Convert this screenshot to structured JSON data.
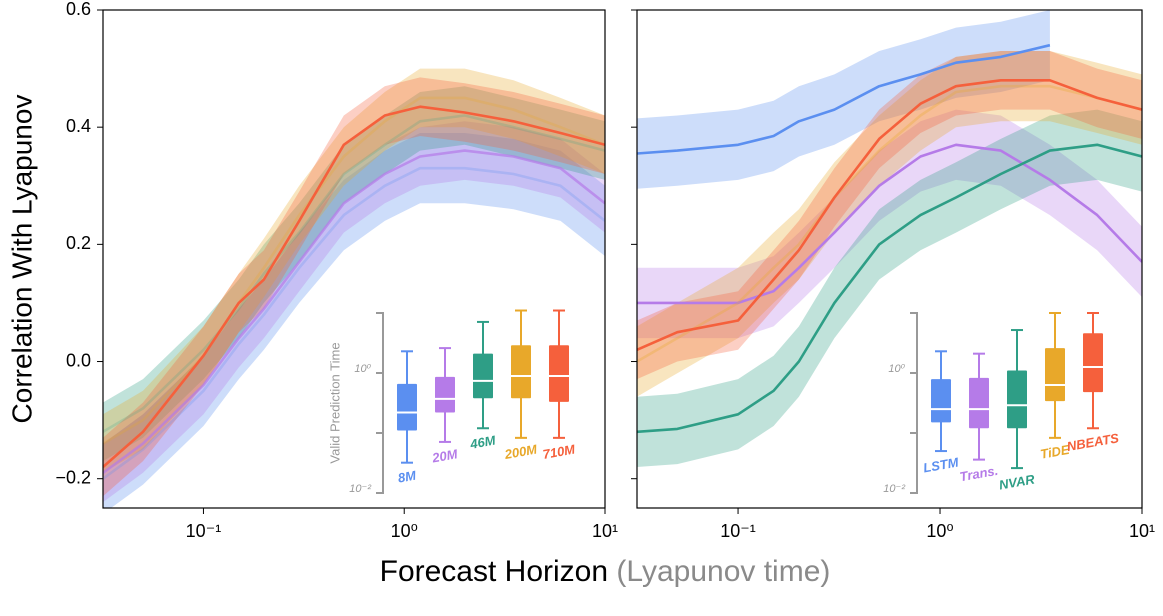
{
  "chart_data": [
    {
      "type": "line",
      "ylabel": "Correlation With Lyapunov",
      "xlabel": "Forecast Horizon",
      "xlabel_unit": "(Lyapunov time)",
      "xlog": true,
      "xlim": [
        0.0316,
        10
      ],
      "xticks": [
        {
          "value": 0.1,
          "label": "10⁻¹"
        },
        {
          "value": 1,
          "label": "10⁰"
        },
        {
          "value": 10,
          "label": "10¹"
        }
      ],
      "ylim": [
        -0.25,
        0.6
      ],
      "yticks": [
        {
          "value": -0.2,
          "label": "−0.2"
        },
        {
          "value": 0,
          "label": "0.0"
        },
        0.2,
        0.4,
        0.6
      ],
      "ytick_labels": true,
      "x": [
        0.0316,
        0.05,
        0.1,
        0.15,
        0.2,
        0.3,
        0.5,
        0.8,
        1.2,
        2,
        3.5,
        6,
        10
      ],
      "series": [
        {
          "name": "8M",
          "color": "#5b8ff0",
          "alpha": 0.25,
          "band_halfwidth": 0.06,
          "values": [
            -0.2,
            -0.15,
            -0.05,
            0.03,
            0.08,
            0.16,
            0.25,
            0.3,
            0.33,
            0.33,
            0.32,
            0.3,
            0.24
          ]
        },
        {
          "name": "20M",
          "color": "#b57be8",
          "alpha": 0.7,
          "band_halfwidth": 0.05,
          "values": [
            -0.19,
            -0.14,
            -0.04,
            0.04,
            0.09,
            0.17,
            0.27,
            0.32,
            0.35,
            0.36,
            0.35,
            0.33,
            0.27
          ]
        },
        {
          "name": "46M",
          "color": "#2e9e86",
          "alpha": 0.2,
          "band_halfwidth": 0.05,
          "values": [
            -0.12,
            -0.08,
            0.02,
            0.09,
            0.15,
            0.22,
            0.32,
            0.37,
            0.41,
            0.42,
            0.4,
            0.38,
            0.36
          ]
        },
        {
          "name": "200M",
          "color": "#e8a82a",
          "alpha": 0.25,
          "band_halfwidth": 0.05,
          "values": [
            -0.14,
            -0.1,
            0.01,
            0.1,
            0.16,
            0.25,
            0.35,
            0.41,
            0.45,
            0.45,
            0.43,
            0.4,
            0.37
          ]
        },
        {
          "name": "710M",
          "color": "#f5603c",
          "alpha": 1,
          "band_halfwidth": 0.05,
          "values": [
            -0.18,
            -0.12,
            0.01,
            0.1,
            0.14,
            0.24,
            0.37,
            0.42,
            0.435,
            0.425,
            0.41,
            0.39,
            0.37
          ]
        }
      ],
      "inset": {
        "type": "box",
        "ylabel": "Valid Prediction Time",
        "ylog": true,
        "ylim": [
          0.01,
          10
        ],
        "yticks": [
          {
            "value": 1,
            "label": "10⁰"
          },
          {
            "value": 0.01,
            "label": "10⁻²"
          }
        ],
        "ytick_marks": [
          10,
          1,
          0.1,
          0.01
        ],
        "boxes": [
          {
            "name": "8M",
            "color": "#5b8ff0",
            "whislo": 0.032,
            "q1": 0.11,
            "med": 0.22,
            "q3": 0.66,
            "whishi": 2.3
          },
          {
            "name": "20M",
            "color": "#b57be8",
            "whislo": 0.071,
            "q1": 0.22,
            "med": 0.37,
            "q3": 0.86,
            "whishi": 2.6
          },
          {
            "name": "46M",
            "color": "#2e9e86",
            "whislo": 0.12,
            "q1": 0.38,
            "med": 0.74,
            "q3": 2.1,
            "whishi": 7.1
          },
          {
            "name": "200M",
            "color": "#e8a82a",
            "whislo": 0.083,
            "q1": 0.38,
            "med": 0.89,
            "q3": 2.9,
            "whishi": 11
          },
          {
            "name": "710M",
            "color": "#f5603c",
            "whislo": 0.083,
            "q1": 0.33,
            "med": 0.89,
            "q3": 2.9,
            "whishi": 11
          }
        ]
      }
    },
    {
      "type": "line",
      "xlog": true,
      "xlim": [
        0.0316,
        10
      ],
      "xticks": [
        {
          "value": 0.1,
          "label": "10⁻¹"
        },
        {
          "value": 1,
          "label": "10⁰"
        },
        {
          "value": 10,
          "label": "10¹"
        }
      ],
      "ylim": [
        -0.25,
        0.6
      ],
      "yticks": [
        -0.2,
        0,
        0.2,
        0.4,
        0.6
      ],
      "ytick_labels": false,
      "x": [
        0.0316,
        0.05,
        0.1,
        0.15,
        0.2,
        0.3,
        0.5,
        0.8,
        1.2,
        2,
        3.5,
        6,
        10
      ],
      "series": [
        {
          "name": "LSTM",
          "color": "#5b8ff0",
          "alpha": 1,
          "band_halfwidth": 0.06,
          "values": [
            0.355,
            0.36,
            0.37,
            0.385,
            0.41,
            0.43,
            0.47,
            0.49,
            0.51,
            0.52,
            0.54,
            null,
            null
          ]
        },
        {
          "name": "Trans.",
          "color": "#b57be8",
          "alpha": 1,
          "band_halfwidth": 0.06,
          "values": [
            0.1,
            0.1,
            0.1,
            0.12,
            0.16,
            0.22,
            0.3,
            0.35,
            0.37,
            0.36,
            0.31,
            0.25,
            0.17
          ]
        },
        {
          "name": "NVAR",
          "color": "#2e9e86",
          "alpha": 1,
          "band_halfwidth": 0.06,
          "values": [
            -0.12,
            -0.115,
            -0.09,
            -0.05,
            0.0,
            0.1,
            0.2,
            0.25,
            0.28,
            0.32,
            0.36,
            0.37,
            0.35
          ]
        },
        {
          "name": "TiDE",
          "color": "#e8a82a",
          "alpha": 0.3,
          "band_halfwidth": 0.06,
          "values": [
            0.0,
            0.04,
            0.1,
            0.16,
            0.2,
            0.28,
            0.36,
            0.42,
            0.46,
            0.47,
            0.47,
            0.45,
            0.43
          ]
        },
        {
          "name": "NBEATS",
          "color": "#f5603c",
          "alpha": 1,
          "band_halfwidth": 0.05,
          "values": [
            0.02,
            0.05,
            0.07,
            0.14,
            0.19,
            0.28,
            0.38,
            0.44,
            0.47,
            0.48,
            0.48,
            0.45,
            0.43
          ]
        }
      ],
      "inset": {
        "type": "box",
        "ylog": true,
        "ylim": [
          0.01,
          10
        ],
        "yticks": [
          {
            "value": 1,
            "label": "10⁰"
          },
          {
            "value": 0.01,
            "label": "10⁻²"
          }
        ],
        "ytick_marks": [
          10,
          1,
          0.1,
          0.01
        ],
        "boxes": [
          {
            "name": "LSTM",
            "color": "#5b8ff0",
            "whislo": 0.05,
            "q1": 0.15,
            "med": 0.25,
            "q3": 0.79,
            "whishi": 2.3
          },
          {
            "name": "Trans.",
            "color": "#b57be8",
            "whislo": 0.036,
            "q1": 0.12,
            "med": 0.25,
            "q3": 0.83,
            "whishi": 2.1
          },
          {
            "name": "NVAR",
            "color": "#2e9e86",
            "whislo": 0.026,
            "q1": 0.12,
            "med": 0.29,
            "q3": 1.1,
            "whishi": 5.2
          },
          {
            "name": "TiDE",
            "color": "#e8a82a",
            "whislo": 0.083,
            "q1": 0.34,
            "med": 0.63,
            "q3": 2.6,
            "whishi": 10
          },
          {
            "name": "NBEATS",
            "color": "#f5603c",
            "whislo": 0.12,
            "q1": 0.48,
            "med": 1.26,
            "q3": 4.6,
            "whishi": 10
          }
        ]
      }
    }
  ]
}
